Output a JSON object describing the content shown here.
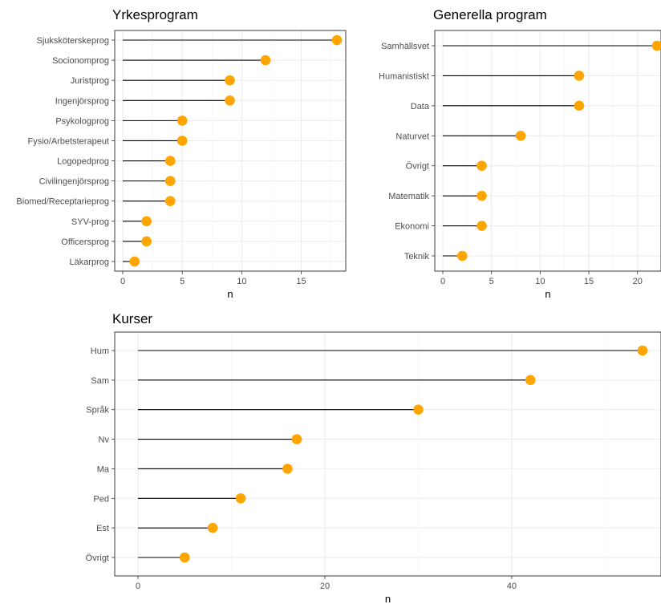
{
  "accent_color": "#FFA500",
  "chart_data": [
    {
      "type": "lollipop",
      "title": "Yrkesprogram",
      "xlabel": "n",
      "ylabel": "",
      "xlim": [
        0,
        18
      ],
      "xticks": [
        0,
        5,
        10,
        15
      ],
      "grid": true,
      "categories": [
        "Sjuksköterskeprog",
        "Socionomprog",
        "Juristprog",
        "Ingenjörsprog",
        "Psykologprog",
        "Fysio/Arbetsterapeut",
        "Logopedprog",
        "Civilingenjörsprog",
        "Biomed/Receptarieprog",
        "SYV-prog",
        "Officersprog",
        "Läkarprog"
      ],
      "values": [
        18,
        12,
        9,
        9,
        5,
        5,
        4,
        4,
        4,
        2,
        2,
        1
      ]
    },
    {
      "type": "lollipop",
      "title": "Generella program",
      "xlabel": "n",
      "ylabel": "",
      "xlim": [
        0,
        22
      ],
      "xticks": [
        0,
        5,
        10,
        15,
        20
      ],
      "grid": true,
      "categories": [
        "Samhällsvet",
        "Humanistiskt",
        "Data",
        "Naturvet",
        "Övrigt",
        "Matematik",
        "Ekonomi",
        "Teknik"
      ],
      "values": [
        22,
        14,
        14,
        8,
        4,
        4,
        4,
        2
      ]
    },
    {
      "type": "lollipop",
      "title": "Kurser",
      "xlabel": "n",
      "ylabel": "",
      "xlim": [
        0,
        54
      ],
      "xticks": [
        0,
        20,
        40
      ],
      "grid": true,
      "categories": [
        "Hum",
        "Sam",
        "Språk",
        "Nv",
        "Ma",
        "Ped",
        "Est",
        "Övrigt"
      ],
      "values": [
        54,
        42,
        30,
        17,
        16,
        11,
        8,
        5
      ]
    }
  ]
}
